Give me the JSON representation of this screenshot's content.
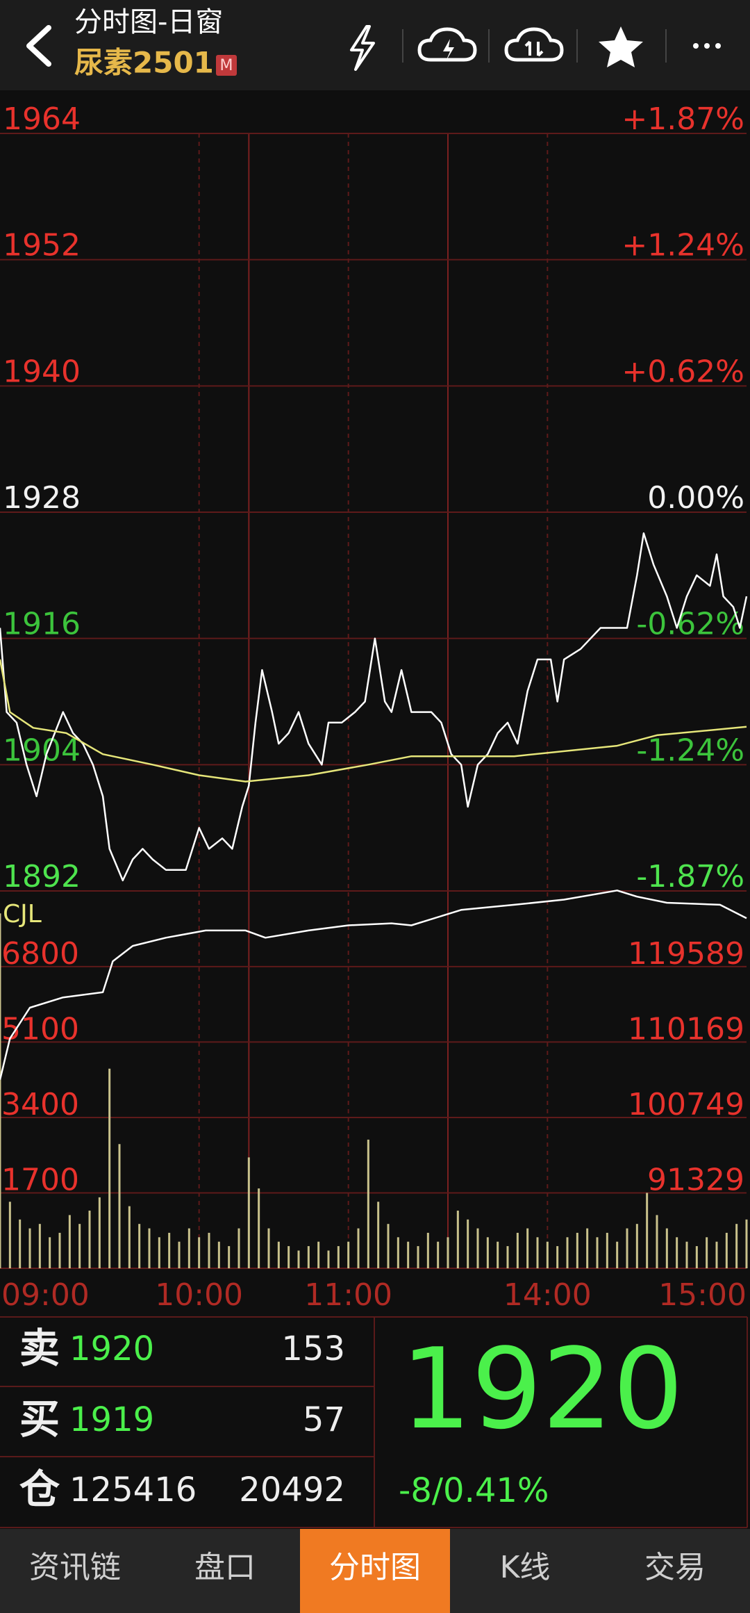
{
  "header": {
    "title": "分时图-日窗",
    "symbol": "尿素2501",
    "badge": "M"
  },
  "chart_data": [
    {
      "type": "line",
      "xlim": [
        0,
        225
      ],
      "xticks": [
        {
          "value": 0,
          "label": "09:00"
        },
        {
          "value": 60,
          "label": "10:00"
        },
        {
          "value": 105,
          "label": "11:00"
        },
        {
          "value": 165,
          "label": "14:00"
        },
        {
          "value": 225,
          "label": "15:00"
        }
      ],
      "session_breaks": [
        75,
        135
      ],
      "ylim": [
        1892,
        1964
      ],
      "yticks": [
        1964,
        1952,
        1940,
        1928,
        1916,
        1904,
        1892
      ],
      "ytick_colors": [
        "#e8322c",
        "#e8322c",
        "#e8322c",
        "#f2f2f2",
        "#3cc43c",
        "#3cc43c",
        "#4ee44e"
      ],
      "y_pct_labels": [
        "+1.87%",
        "+1.24%",
        "+0.62%",
        "0.00%",
        "-0.62%",
        "-1.24%",
        "-1.87%"
      ],
      "series": [
        {
          "color": "#ffffff",
          "x": [
            0,
            2,
            5,
            8,
            11,
            14,
            19,
            22,
            25,
            28,
            31,
            33,
            37,
            40,
            43,
            46,
            50,
            53,
            56,
            60,
            63,
            67,
            70,
            73,
            75,
            77,
            79,
            82,
            84,
            87,
            90,
            93,
            97,
            99,
            103,
            107,
            110,
            113,
            116,
            118,
            121,
            124,
            127,
            130,
            133,
            136,
            139,
            141,
            144,
            147,
            150,
            153,
            156,
            159,
            162,
            166,
            168,
            170,
            175,
            178,
            181,
            184,
            189,
            192,
            194,
            197,
            201,
            204,
            207,
            210,
            214,
            216,
            218,
            221,
            223,
            225
          ],
          "values": [
            1917,
            1909,
            1908,
            1904,
            1901,
            1905,
            1909,
            1907,
            1906,
            1904,
            1901,
            1896,
            1893,
            1895,
            1896,
            1895,
            1894,
            1894,
            1894,
            1898,
            1896,
            1897,
            1896,
            1900,
            1902,
            1908,
            1913,
            1909,
            1906,
            1907,
            1909,
            1906,
            1904,
            1908,
            1908,
            1909,
            1910,
            1916,
            1910,
            1909,
            1913,
            1909,
            1909,
            1909,
            1908,
            1905,
            1904,
            1900,
            1904,
            1905,
            1907,
            1908,
            1906,
            1911,
            1914,
            1914,
            1910,
            1914,
            1915,
            1916,
            1917,
            1917,
            1917,
            1922,
            1926,
            1923,
            1920,
            1917,
            1920,
            1922,
            1921,
            1924,
            1920,
            1919,
            1917,
            1920
          ]
        },
        {
          "color": "#e6e67a",
          "x": [
            0,
            3,
            10,
            20,
            31,
            46,
            60,
            74,
            93,
            111,
            124,
            155,
            186,
            198,
            225
          ],
          "values": [
            1914,
            1909,
            1907.5,
            1907,
            1905,
            1904,
            1903,
            1902.4,
            1903,
            1904,
            1904.8,
            1904.8,
            1905.8,
            1906.8,
            1907.6
          ]
        }
      ]
    },
    {
      "type": "bar",
      "label": "CJL",
      "color": "#c9c28c",
      "x": [
        0,
        3,
        6,
        9,
        12,
        15,
        18,
        21,
        24,
        27,
        30,
        33,
        36,
        39,
        42,
        45,
        48,
        51,
        54,
        57,
        60,
        63,
        66,
        69,
        72,
        75,
        78,
        81,
        84,
        87,
        90,
        93,
        96,
        99,
        102,
        105,
        108,
        111,
        114,
        117,
        120,
        123,
        126,
        129,
        132,
        135,
        138,
        141,
        144,
        147,
        150,
        153,
        156,
        159,
        162,
        165,
        168,
        171,
        174,
        177,
        180,
        183,
        186,
        189,
        192,
        195,
        198,
        201,
        204,
        207,
        210,
        213,
        216,
        219,
        222,
        225
      ],
      "values": [
        8000,
        1500,
        1100,
        900,
        1000,
        700,
        800,
        1200,
        1000,
        1300,
        1600,
        4500,
        2800,
        1400,
        1000,
        900,
        700,
        800,
        600,
        900,
        700,
        800,
        600,
        500,
        900,
        2500,
        1800,
        900,
        600,
        500,
        400,
        500,
        600,
        400,
        500,
        600,
        900,
        2900,
        1500,
        1000,
        700,
        600,
        500,
        800,
        600,
        700,
        1300,
        1100,
        900,
        700,
        600,
        500,
        800,
        900,
        700,
        600,
        500,
        700,
        800,
        900,
        700,
        800,
        600,
        900,
        1000,
        1700,
        1200,
        900,
        700,
        600,
        500,
        700,
        600,
        800,
        1000,
        1100
      ],
      "ylim": [
        0,
        8600
      ],
      "yticks": [
        6800,
        5100,
        3400,
        1700
      ],
      "y2lim": [
        81909,
        129563
      ],
      "y2ticks": [
        119589,
        110169,
        100749,
        91329
      ],
      "tick_color": "#e8322c",
      "series": [
        {
          "color": "#ffffff",
          "axis": "y2",
          "x": [
            0,
            3,
            9,
            19,
            31,
            34,
            40,
            50,
            62,
            74,
            80,
            93,
            105,
            118,
            124,
            139,
            155,
            170,
            186,
            192,
            201,
            217,
            225
          ],
          "values": [
            105465,
            110606,
            114462,
            115747,
            116390,
            120245,
            122173,
            123201,
            124100,
            124100,
            123200,
            124100,
            124743,
            125000,
            124743,
            126670,
            127313,
            127955,
            129100,
            128330,
            127570,
            127313,
            125643
          ]
        }
      ]
    }
  ],
  "quote": {
    "rows": [
      {
        "label": "卖",
        "price": 1920,
        "qty": 153
      },
      {
        "label": "买",
        "price": 1919,
        "qty": 57
      },
      {
        "label": "仓",
        "price": 125416,
        "qty": 20492
      }
    ],
    "last": 1920,
    "change": "-8/0.41%"
  },
  "tabs": [
    "资讯链",
    "盘口",
    "分时图",
    "K线",
    "交易"
  ],
  "active_tab": 2
}
